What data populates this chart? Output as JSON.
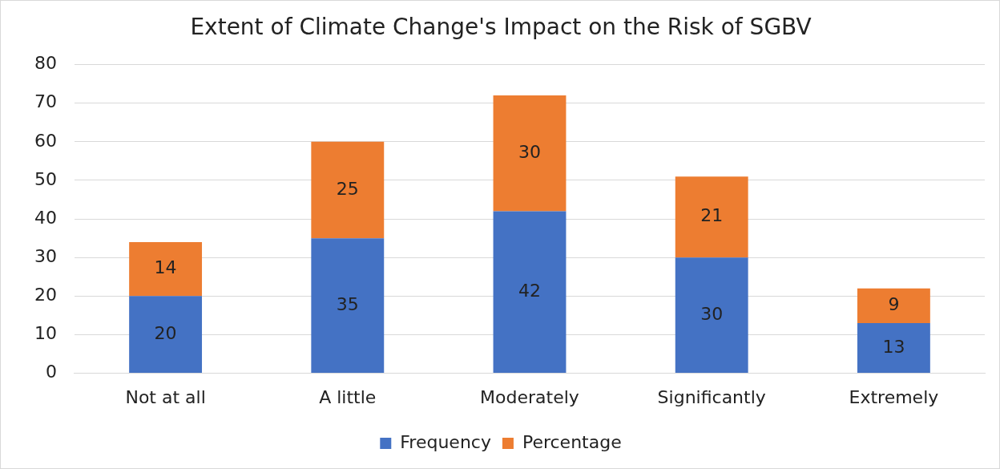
{
  "chart_data": {
    "type": "bar",
    "title": "Extent of Climate Change's Impact on the Risk of SGBV",
    "categories": [
      "Not at all",
      "A little",
      "Moderately",
      "Significantly",
      "Extremely"
    ],
    "series": [
      {
        "name": "Frequency",
        "color": "#4472c4",
        "values": [
          20,
          35,
          42,
          30,
          13
        ]
      },
      {
        "name": "Percentage",
        "color": "#ed7d31",
        "values": [
          14,
          25,
          30,
          21,
          9
        ]
      }
    ],
    "stacked": true,
    "data_labels": true,
    "ylim": [
      0,
      80
    ],
    "yticks": [
      0,
      10,
      20,
      30,
      40,
      50,
      60,
      70,
      80
    ],
    "grid": "y",
    "legend": "bottom"
  }
}
